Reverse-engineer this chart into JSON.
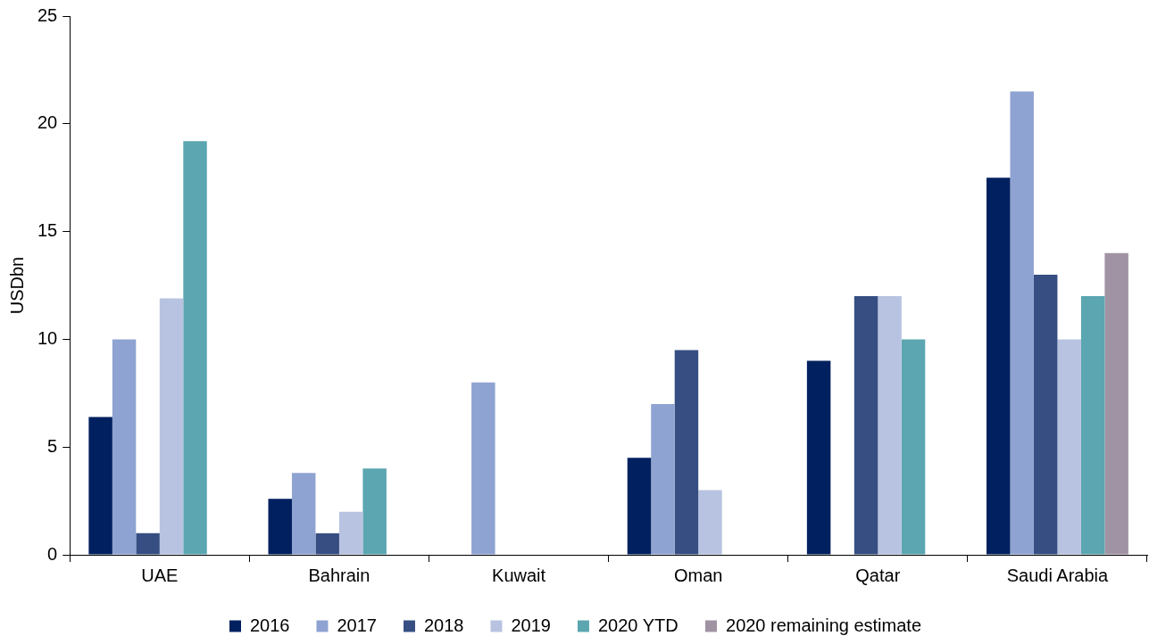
{
  "chart_data": {
    "type": "bar",
    "ylabel": "USDbn",
    "categories": [
      "UAE",
      "Bahrain",
      "Kuwait",
      "Oman",
      "Qatar",
      "Saudi Arabia"
    ],
    "series": [
      {
        "name": "2016",
        "color": "#00205f",
        "values": [
          6.4,
          2.6,
          null,
          4.5,
          9,
          17.5
        ]
      },
      {
        "name": "2017",
        "color": "#8fa3d2",
        "values": [
          10,
          3.8,
          8,
          7,
          null,
          21.5
        ]
      },
      {
        "name": "2018",
        "color": "#364e82",
        "values": [
          1,
          1,
          null,
          9.5,
          12,
          13
        ]
      },
      {
        "name": "2019",
        "color": "#b7c3e0",
        "values": [
          11.9,
          2,
          null,
          3,
          12,
          10
        ]
      },
      {
        "name": "2020 YTD",
        "color": "#5ba6b0",
        "values": [
          19.2,
          4,
          null,
          null,
          10,
          12
        ]
      },
      {
        "name": "2020 remaining estimate",
        "color": "#a093a3",
        "values": [
          null,
          null,
          null,
          null,
          null,
          14
        ]
      }
    ],
    "ylim": [
      0,
      25
    ],
    "yticks": [
      0,
      5,
      10,
      15,
      20,
      25
    ],
    "grid": false,
    "legend": "bottom"
  }
}
